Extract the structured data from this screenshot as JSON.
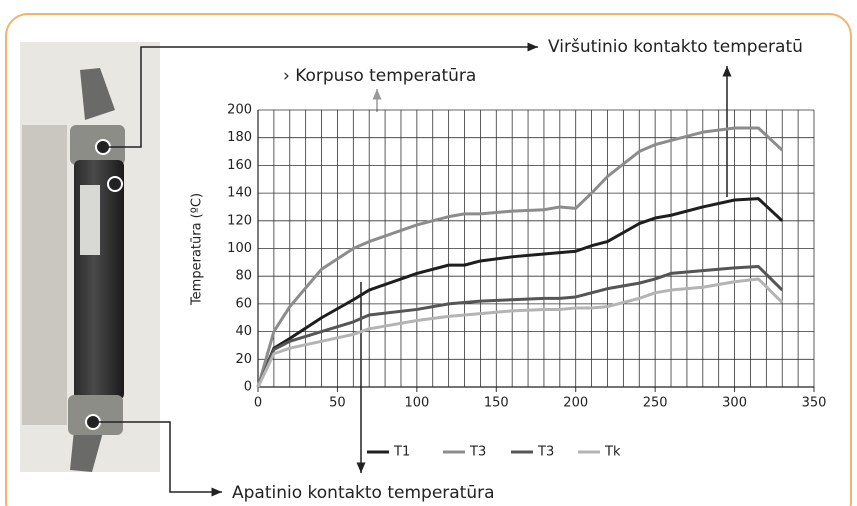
{
  "chart_data": {
    "type": "line",
    "ylabel": "Temperatūra (ºC)",
    "x": [
      0,
      10,
      20,
      40,
      60,
      70,
      100,
      120,
      130,
      140,
      160,
      180,
      190,
      200,
      210,
      220,
      240,
      250,
      260,
      280,
      300,
      315,
      330
    ],
    "series": [
      {
        "name": "T1",
        "color": "#1e1e1e",
        "values": [
          0,
          28,
          35,
          50,
          63,
          70,
          82,
          88,
          88,
          91,
          94,
          96,
          97,
          98,
          102,
          105,
          118,
          122,
          124,
          130,
          135,
          136,
          120
        ]
      },
      {
        "name": "T3",
        "color": "#8c8c8c",
        "values": [
          0,
          40,
          58,
          85,
          100,
          105,
          117,
          123,
          125,
          125,
          127,
          128,
          130,
          129,
          140,
          152,
          170,
          175,
          178,
          184,
          187,
          187,
          171
        ]
      },
      {
        "name": "T3",
        "color": "#555555",
        "values": [
          0,
          27,
          33,
          40,
          47,
          52,
          56,
          60,
          61,
          62,
          63,
          64,
          64,
          65,
          68,
          71,
          75,
          78,
          82,
          84,
          86,
          87,
          70
        ]
      },
      {
        "name": "Tk",
        "color": "#b4b4b4",
        "values": [
          0,
          24,
          28,
          33,
          38,
          42,
          48,
          51,
          52,
          53,
          55,
          56,
          56,
          57,
          57,
          58,
          64,
          68,
          70,
          72,
          76,
          78,
          61
        ]
      }
    ],
    "xlim": [
      0,
      350
    ],
    "xticks": [
      0,
      50,
      100,
      150,
      200,
      250,
      300,
      350
    ],
    "ylim": [
      0,
      200
    ],
    "yticks": [
      0,
      20,
      40,
      60,
      80,
      100,
      120,
      140,
      160,
      180,
      200
    ],
    "grid": true,
    "xgrid_step": 10,
    "legend": "bottom",
    "annotations": [
      "Viršutinio kontakto temperatū",
      "› Korpuso temperatūra",
      "Apatinio kontakto temperatūra"
    ]
  }
}
